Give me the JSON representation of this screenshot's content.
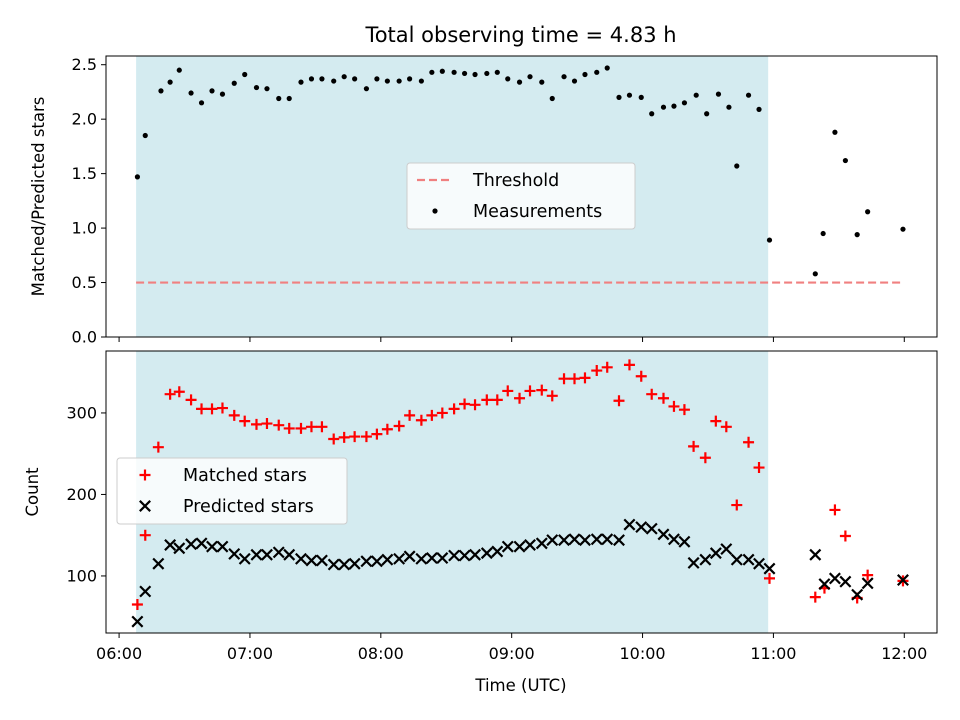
{
  "chart_data": {
    "title": "Total observing time = 4.83 h",
    "xlabel": "Time (UTC)",
    "x_ticks": [
      "06:00",
      "07:00",
      "08:00",
      "09:00",
      "10:00",
      "11:00",
      "12:00"
    ],
    "x_tick_hours": [
      6,
      7,
      8,
      9,
      10,
      11,
      12
    ],
    "xlim_hours": [
      5.9,
      12.25
    ],
    "shaded_span_hours": [
      6.13,
      10.96
    ],
    "shade_color": "#d4ebf0",
    "panels": [
      {
        "type": "scatter",
        "ylabel": "Matched/Predicted stars",
        "ylim": [
          0,
          2.58
        ],
        "y_ticks": [
          "0.0",
          "0.5",
          "1.0",
          "1.5",
          "2.0",
          "2.5"
        ],
        "y_tick_values": [
          0,
          0.5,
          1.0,
          1.5,
          2.0,
          2.5
        ],
        "legend": "center",
        "threshold": {
          "name": "Threshold",
          "value": 0.5,
          "x_hours": [
            6.13,
            11.99
          ],
          "color": "#f08080"
        },
        "series": [
          {
            "name": "Measurements",
            "marker": "dot",
            "color": "#000000",
            "x_hours": [
              6.14,
              6.2,
              6.32,
              6.39,
              6.46,
              6.55,
              6.63,
              6.71,
              6.79,
              6.88,
              6.96,
              7.05,
              7.13,
              7.22,
              7.3,
              7.39,
              7.47,
              7.55,
              7.64,
              7.72,
              7.8,
              7.89,
              7.97,
              8.05,
              8.14,
              8.22,
              8.31,
              8.39,
              8.47,
              8.56,
              8.64,
              8.72,
              8.81,
              8.89,
              8.97,
              9.06,
              9.14,
              9.23,
              9.31,
              9.4,
              9.48,
              9.56,
              9.65,
              9.73,
              9.82,
              9.9,
              9.99,
              10.07,
              10.16,
              10.24,
              10.32,
              10.41,
              10.49,
              10.58,
              10.66,
              10.72,
              10.81,
              10.89,
              10.97,
              11.32,
              11.38,
              11.47,
              11.55,
              11.64,
              11.72,
              11.99
            ],
            "y": [
              1.47,
              1.85,
              2.26,
              2.34,
              2.45,
              2.24,
              2.15,
              2.26,
              2.23,
              2.33,
              2.41,
              2.29,
              2.28,
              2.19,
              2.19,
              2.34,
              2.37,
              2.37,
              2.35,
              2.39,
              2.37,
              2.28,
              2.37,
              2.35,
              2.35,
              2.37,
              2.35,
              2.43,
              2.44,
              2.43,
              2.42,
              2.41,
              2.42,
              2.43,
              2.37,
              2.34,
              2.39,
              2.34,
              2.19,
              2.39,
              2.35,
              2.41,
              2.43,
              2.47,
              2.2,
              2.22,
              2.2,
              2.05,
              2.11,
              2.12,
              2.15,
              2.22,
              2.05,
              2.23,
              2.11,
              1.57,
              2.22,
              2.09,
              0.89,
              0.58,
              0.95,
              1.88,
              1.62,
              0.94,
              1.15,
              0.99
            ]
          }
        ]
      },
      {
        "type": "scatter",
        "ylabel": "Count",
        "ylim": [
          30,
          376
        ],
        "y_ticks": [
          "100",
          "200",
          "300"
        ],
        "y_tick_values": [
          100,
          200,
          300
        ],
        "legend": "center-left",
        "series": [
          {
            "name": "Matched stars",
            "marker": "plus",
            "color": "#ff0000",
            "x_hours": [
              6.14,
              6.2,
              6.3,
              6.39,
              6.46,
              6.55,
              6.63,
              6.71,
              6.79,
              6.88,
              6.96,
              7.05,
              7.13,
              7.22,
              7.3,
              7.39,
              7.47,
              7.55,
              7.64,
              7.72,
              7.8,
              7.89,
              7.97,
              8.05,
              8.14,
              8.22,
              8.31,
              8.39,
              8.47,
              8.56,
              8.64,
              8.72,
              8.81,
              8.89,
              8.97,
              9.06,
              9.14,
              9.23,
              9.31,
              9.4,
              9.48,
              9.56,
              9.65,
              9.73,
              9.82,
              9.9,
              9.99,
              10.07,
              10.16,
              10.24,
              10.32,
              10.39,
              10.48,
              10.56,
              10.64,
              10.72,
              10.81,
              10.89,
              10.97,
              11.32,
              11.39,
              11.47,
              11.55,
              11.64,
              11.72,
              11.99
            ],
            "y": [
              65,
              150,
              258,
              323,
              326,
              316,
              305,
              305,
              306,
              297,
              290,
              286,
              287,
              285,
              281,
              281,
              283,
              283,
              268,
              270,
              271,
              271,
              274,
              280,
              284,
              297,
              291,
              297,
              300,
              305,
              311,
              310,
              316,
              316,
              327,
              318,
              327,
              328,
              321,
              342,
              342,
              343,
              352,
              356,
              315,
              359,
              345,
              323,
              318,
              308,
              304,
              259,
              245,
              290,
              283,
              187,
              264,
              233,
              97,
              74,
              85,
              181,
              149,
              73,
              101,
              94
            ]
          },
          {
            "name": "Predicted stars",
            "marker": "x",
            "color": "#000000",
            "x_hours": [
              6.14,
              6.2,
              6.3,
              6.39,
              6.46,
              6.55,
              6.63,
              6.71,
              6.79,
              6.88,
              6.96,
              7.05,
              7.13,
              7.22,
              7.3,
              7.39,
              7.47,
              7.55,
              7.64,
              7.72,
              7.8,
              7.89,
              7.97,
              8.05,
              8.14,
              8.22,
              8.31,
              8.39,
              8.47,
              8.56,
              8.64,
              8.72,
              8.81,
              8.89,
              8.97,
              9.06,
              9.14,
              9.23,
              9.31,
              9.4,
              9.48,
              9.56,
              9.65,
              9.73,
              9.82,
              9.9,
              9.99,
              10.07,
              10.16,
              10.24,
              10.32,
              10.39,
              10.48,
              10.56,
              10.64,
              10.72,
              10.81,
              10.89,
              10.97,
              11.32,
              11.39,
              11.47,
              11.55,
              11.64,
              11.72,
              11.99
            ],
            "y": [
              44,
              81,
              115,
              138,
              134,
              139,
              140,
              136,
              136,
              127,
              121,
              126,
              126,
              129,
              126,
              121,
              119,
              119,
              114,
              114,
              115,
              118,
              118,
              120,
              121,
              124,
              121,
              122,
              122,
              125,
              125,
              126,
              128,
              130,
              136,
              136,
              138,
              140,
              144,
              144,
              145,
              144,
              145,
              145,
              144,
              163,
              160,
              158,
              151,
              145,
              142,
              116,
              120,
              128,
              133,
              120,
              120,
              115,
              109,
              126,
              90,
              97,
              93,
              77,
              91,
              95
            ]
          }
        ]
      }
    ]
  }
}
